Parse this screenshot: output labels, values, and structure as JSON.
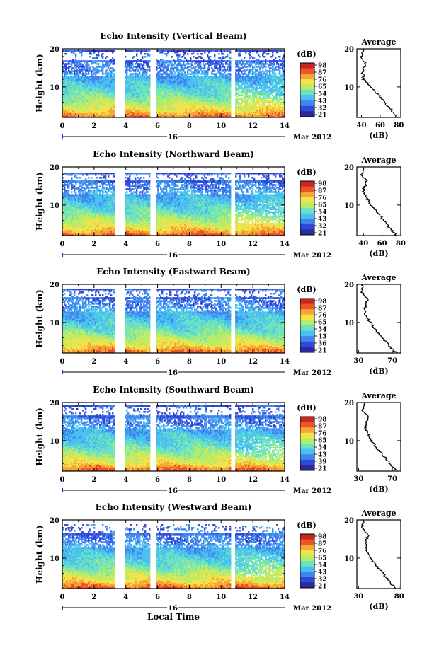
{
  "chart_data": [
    {
      "type": "heatmap",
      "title": "Echo Intensity (Vertical Beam)",
      "ylabel": "Height (km)",
      "xlim": [
        0,
        14
      ],
      "ylim": [
        2,
        20
      ],
      "x_ticks": [
        "0",
        "2",
        "4",
        "6",
        "8",
        "10",
        "12",
        "14"
      ],
      "y_ticks": [
        "20",
        "10"
      ],
      "date_day": "16",
      "date_label": "Mar 2012",
      "colorbar": {
        "unit": "(dB)",
        "ticks": [
          "98",
          "87",
          "76",
          "65",
          "54",
          "43",
          "32",
          "21"
        ],
        "range": [
          21,
          98
        ]
      },
      "gaps": [
        [
          3.3,
          3.9
        ],
        [
          5.5,
          5.85
        ],
        [
          10.65,
          10.9
        ]
      ],
      "cloud_top": 19.5,
      "tropopause": 16.5,
      "profile": {
        "title": "Average",
        "xlabel": "(dB)",
        "x_ticks": [
          "40",
          "60",
          "80"
        ],
        "xlim": [
          35,
          82
        ],
        "y_ticks": [
          "20",
          "10"
        ],
        "heights": [
          2,
          4,
          6,
          8,
          10,
          12,
          14,
          16,
          18,
          20
        ],
        "values": [
          78,
          72,
          64,
          58,
          50,
          42,
          41,
          44,
          40,
          42
        ]
      }
    },
    {
      "type": "heatmap",
      "title": "Echo Intensity (Northward Beam)",
      "ylabel": "Height (km)",
      "xlim": [
        0,
        14
      ],
      "ylim": [
        2,
        20
      ],
      "x_ticks": [
        "0",
        "2",
        "4",
        "6",
        "8",
        "10",
        "12",
        "14"
      ],
      "y_ticks": [
        "20",
        "10"
      ],
      "date_day": "16",
      "date_label": "Mar 2012",
      "colorbar": {
        "unit": "(dB)",
        "ticks": [
          "98",
          "87",
          "76",
          "65",
          "54",
          "43",
          "32",
          "21"
        ],
        "range": [
          21,
          98
        ]
      },
      "gaps": [
        [
          3.3,
          3.9
        ],
        [
          5.5,
          5.85
        ],
        [
          10.65,
          10.9
        ]
      ],
      "cloud_top": 18.6,
      "tropopause": 16.0,
      "profile": {
        "title": "Average",
        "xlabel": "(dB)",
        "x_ticks": [
          "40",
          "60",
          "80"
        ],
        "xlim": [
          33,
          80
        ],
        "y_ticks": [
          "20",
          "10"
        ],
        "heights": [
          2,
          4,
          6,
          8,
          10,
          12,
          14,
          16,
          18,
          20
        ],
        "values": [
          76,
          68,
          62,
          55,
          48,
          43,
          40,
          44,
          38,
          40
        ]
      }
    },
    {
      "type": "heatmap",
      "title": "Echo Intensity (Eastward Beam)",
      "ylabel": "Height (km)",
      "xlim": [
        0,
        14
      ],
      "ylim": [
        2,
        20
      ],
      "x_ticks": [
        "0",
        "2",
        "4",
        "6",
        "8",
        "10",
        "12",
        "14"
      ],
      "y_ticks": [
        "20",
        "10"
      ],
      "date_day": "16",
      "date_label": "Mar 2012",
      "colorbar": {
        "unit": "(dB)",
        "ticks": [
          "98",
          "87",
          "76",
          "65",
          "54",
          "43",
          "36",
          "21"
        ],
        "range": [
          21,
          98
        ]
      },
      "gaps": [
        [
          3.3,
          3.9
        ],
        [
          5.5,
          5.85
        ],
        [
          10.65,
          10.9
        ]
      ],
      "cloud_top": 18.8,
      "tropopause": 16.2,
      "profile": {
        "title": "Average",
        "xlabel": "(dB)",
        "x_ticks": [
          "30",
          "70"
        ],
        "xlim": [
          28,
          80
        ],
        "y_ticks": [
          "20",
          "10"
        ],
        "heights": [
          2,
          4,
          6,
          8,
          10,
          12,
          14,
          16,
          18,
          20
        ],
        "values": [
          75,
          66,
          58,
          50,
          44,
          38,
          38,
          41,
          34,
          35
        ]
      }
    },
    {
      "type": "heatmap",
      "title": "Echo Intensity (Southward Beam)",
      "ylabel": "Height (km)",
      "xlim": [
        0,
        14
      ],
      "ylim": [
        2,
        20
      ],
      "x_ticks": [
        "0",
        "2",
        "4",
        "6",
        "8",
        "10",
        "12",
        "14"
      ],
      "y_ticks": [
        "20",
        "10"
      ],
      "date_day": "16",
      "date_label": "Mar 2012",
      "colorbar": {
        "unit": "(dB)",
        "ticks": [
          "98",
          "87",
          "76",
          "65",
          "54",
          "43",
          "39",
          "21"
        ],
        "range": [
          21,
          98
        ]
      },
      "gaps": [
        [
          3.3,
          3.9
        ],
        [
          5.5,
          5.85
        ],
        [
          10.65,
          10.9
        ]
      ],
      "cloud_top": 19.2,
      "tropopause": 16.0,
      "profile": {
        "title": "Average",
        "xlabel": "(dB)",
        "x_ticks": [
          "30",
          "70"
        ],
        "xlim": [
          28,
          80
        ],
        "y_ticks": [
          "20",
          "10"
        ],
        "heights": [
          2,
          4,
          6,
          8,
          10,
          12,
          14,
          16,
          18,
          20
        ],
        "values": [
          76,
          67,
          60,
          52,
          45,
          40,
          38,
          42,
          35,
          36
        ]
      }
    },
    {
      "type": "heatmap",
      "title": "Echo Intensity (Westward Beam)",
      "ylabel": "Height (km)",
      "xlabel": "Local Time",
      "xlim": [
        0,
        14
      ],
      "ylim": [
        2,
        20
      ],
      "x_ticks": [
        "0",
        "2",
        "4",
        "6",
        "8",
        "10",
        "12",
        "14"
      ],
      "y_ticks": [
        "20",
        "10"
      ],
      "date_day": "16",
      "date_label": "Mar 2012",
      "colorbar": {
        "unit": "(dB)",
        "ticks": [
          "98",
          "87",
          "76",
          "65",
          "54",
          "43",
          "32",
          "21"
        ],
        "range": [
          21,
          98
        ]
      },
      "gaps": [
        [
          3.3,
          3.9
        ],
        [
          5.5,
          5.85
        ],
        [
          10.65,
          10.9
        ]
      ],
      "cloud_top": 19.0,
      "tropopause": 16.0,
      "profile": {
        "title": "Average",
        "xlabel": "(dB)",
        "x_ticks": [
          "30",
          "80"
        ],
        "xlim": [
          28,
          82
        ],
        "y_ticks": [
          "20",
          "10"
        ],
        "heights": [
          2,
          4,
          6,
          8,
          10,
          12,
          14,
          16,
          18,
          20
        ],
        "values": [
          76,
          67,
          60,
          52,
          45,
          40,
          38,
          42,
          35,
          36
        ]
      }
    }
  ],
  "colormap": [
    "#2c2a9a",
    "#2f49d8",
    "#3f86ee",
    "#49c0ef",
    "#6ce3c0",
    "#b5ec6a",
    "#f2e34a",
    "#f5a635",
    "#ec5428",
    "#c9261e"
  ]
}
